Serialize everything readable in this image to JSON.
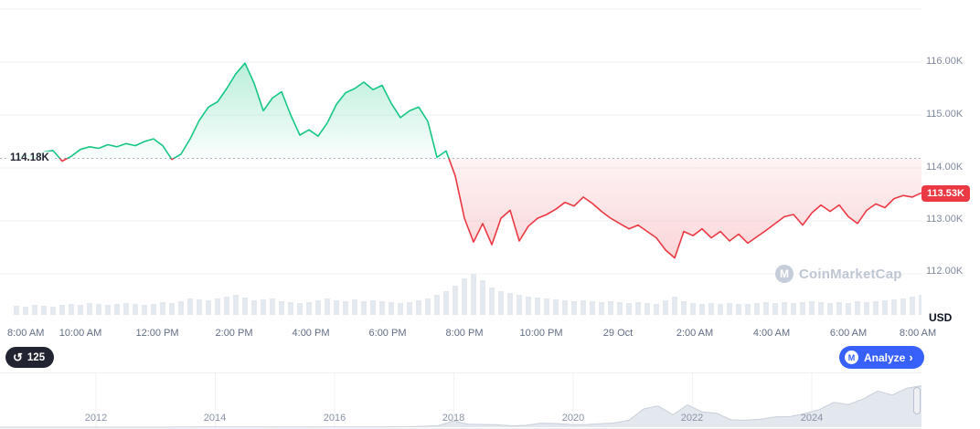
{
  "chart_data": {
    "type": "line",
    "title": "24h cryptocurrency price chart (USD)",
    "unit": "USD",
    "baseline": {
      "value": 114.18,
      "label": "114.18K"
    },
    "current": {
      "value": 113.53,
      "label": "113.53K"
    },
    "y_ticks": [
      {
        "value": 116,
        "label": "116.00K"
      },
      {
        "value": 115,
        "label": "115.00K"
      },
      {
        "value": 114,
        "label": "114.00K"
      },
      {
        "value": 113,
        "label": "113.00K"
      },
      {
        "value": 112,
        "label": "112.00K"
      }
    ],
    "extra_gridlines": [
      117
    ],
    "x_ticks": [
      "8:00 AM",
      "10:00 AM",
      "12:00 PM",
      "2:00 PM",
      "4:00 PM",
      "6:00 PM",
      "8:00 PM",
      "10:00 PM",
      "29 Oct",
      "2:00 AM",
      "4:00 AM",
      "6:00 AM",
      "8:00 AM"
    ],
    "prices_k": [
      114.18,
      114.24,
      114.2,
      114.3,
      114.33,
      114.13,
      114.22,
      114.35,
      114.4,
      114.37,
      114.44,
      114.4,
      114.46,
      114.42,
      114.5,
      114.55,
      114.42,
      114.16,
      114.26,
      114.55,
      114.9,
      115.15,
      115.25,
      115.5,
      115.78,
      115.98,
      115.6,
      115.08,
      115.32,
      115.44,
      115.0,
      114.62,
      114.72,
      114.6,
      114.85,
      115.2,
      115.42,
      115.5,
      115.62,
      115.48,
      115.56,
      115.22,
      114.95,
      115.08,
      115.15,
      114.88,
      114.2,
      114.32,
      113.85,
      113.05,
      112.6,
      112.95,
      112.55,
      113.05,
      113.2,
      112.62,
      112.9,
      113.05,
      113.12,
      113.22,
      113.35,
      113.28,
      113.45,
      113.33,
      113.18,
      113.05,
      112.95,
      112.85,
      112.92,
      112.8,
      112.68,
      112.45,
      112.3,
      112.8,
      112.72,
      112.85,
      112.68,
      112.8,
      112.62,
      112.75,
      112.58,
      112.7,
      112.82,
      112.95,
      113.08,
      113.12,
      112.92,
      113.15,
      113.3,
      113.18,
      113.3,
      113.08,
      112.95,
      113.2,
      113.32,
      113.25,
      113.42,
      113.48,
      113.45,
      113.53
    ],
    "volumes": [
      10,
      9,
      11,
      10,
      9,
      11,
      12,
      11,
      13,
      12,
      11,
      12,
      13,
      12,
      11,
      12,
      14,
      13,
      15,
      18,
      17,
      16,
      18,
      20,
      22,
      19,
      16,
      17,
      18,
      15,
      14,
      13,
      14,
      16,
      18,
      16,
      15,
      17,
      15,
      16,
      15,
      14,
      13,
      14,
      16,
      18,
      22,
      26,
      32,
      40,
      45,
      38,
      30,
      26,
      24,
      22,
      20,
      19,
      18,
      17,
      16,
      15,
      16,
      15,
      14,
      15,
      14,
      13,
      14,
      13,
      12,
      16,
      20,
      15,
      13,
      12,
      13,
      12,
      13,
      12,
      12,
      13,
      14,
      13,
      14,
      13,
      14,
      15,
      14,
      13,
      14,
      13,
      15,
      14,
      15,
      16,
      17,
      18,
      20,
      22
    ],
    "colors": {
      "up": "#16c784",
      "down": "#ea3943",
      "grid": "#eff2f5",
      "baseline": "#a8b1c2",
      "volume": "#e4e8ef",
      "nav_fill": "#e3e7ee",
      "nav_stroke": "#c9d0da"
    },
    "navigator": {
      "years": [
        "2012",
        "2014",
        "2016",
        "2018",
        "2020",
        "2022",
        "2024"
      ],
      "values_k": [
        0.1,
        0.1,
        0.1,
        0.1,
        0.1,
        0.1,
        0.1,
        0.1,
        0.1,
        0.1,
        0.1,
        0.1,
        0.2,
        0.3,
        1.0,
        0.8,
        0.5,
        0.6,
        0.4,
        0.3,
        0.25,
        0.3,
        0.4,
        0.43,
        0.45,
        0.68,
        0.72,
        1.0,
        1.2,
        2.5,
        4.4,
        17,
        8,
        7.5,
        6.5,
        3.8,
        5.2,
        11,
        10,
        7.2,
        6.8,
        9.2,
        11.5,
        19,
        50,
        58,
        34,
        61,
        42,
        38,
        20,
        19,
        22,
        28,
        29,
        37,
        48,
        68,
        62,
        77,
        99,
        88,
        107,
        113.5
      ]
    }
  },
  "axis": {
    "usd_label": "USD"
  },
  "controls": {
    "history_count": "125",
    "analyze_label": "Analyze",
    "analyze_chevron": "›",
    "logo_letter": "M"
  },
  "watermark": {
    "text": "CoinMarketCap",
    "logo_letter": "M"
  }
}
